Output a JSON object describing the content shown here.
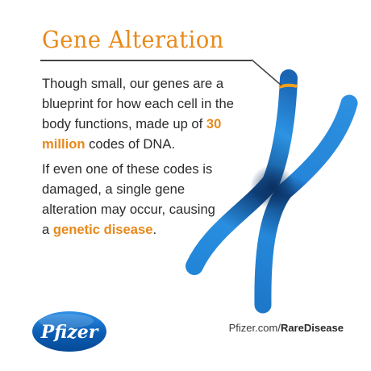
{
  "title": "Gene Alteration",
  "paragraph1": {
    "before": "Though small, our genes are a blueprint for how each cell in the body functions, made up of",
    "highlight": "30 million",
    "after": "codes of DNA."
  },
  "paragraph2": {
    "before": "If even one of these codes is damaged, a single gene alteration may occur, causing a",
    "highlight": "genetic disease",
    "after": "."
  },
  "logo_text": "Pfizer",
  "website": {
    "prefix": "Pfizer.com/",
    "path": "RareDisease"
  },
  "colors": {
    "orange": "#e8891a",
    "chromosome_blue": "#1e7fd4",
    "pfizer_blue": "#0a5cb3"
  }
}
